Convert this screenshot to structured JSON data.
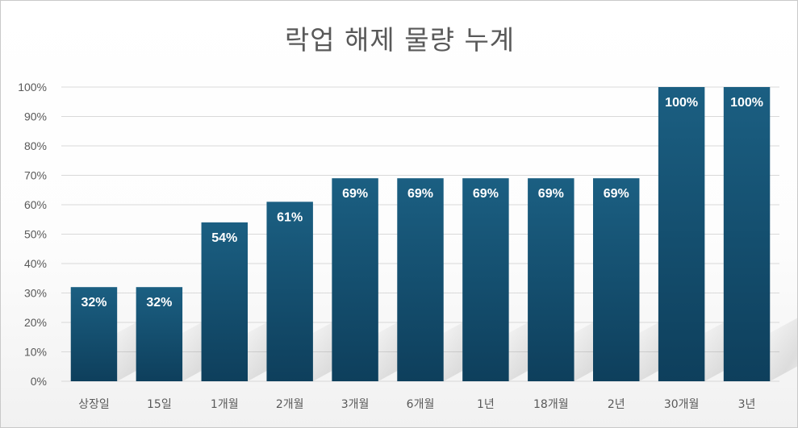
{
  "chart_data": {
    "type": "bar",
    "title": "락업 해제 물량 누계",
    "xlabel": "",
    "ylabel": "",
    "categories": [
      "상장일",
      "15일",
      "1개월",
      "2개월",
      "3개월",
      "6개월",
      "1년",
      "18개월",
      "2년",
      "30개월",
      "3년"
    ],
    "values": [
      32,
      32,
      54,
      61,
      69,
      69,
      69,
      69,
      69,
      100,
      100
    ],
    "data_labels": [
      "32%",
      "32%",
      "54%",
      "61%",
      "69%",
      "69%",
      "69%",
      "69%",
      "69%",
      "100%",
      "100%"
    ],
    "y_ticks": [
      "0%",
      "10%",
      "20%",
      "30%",
      "40%",
      "50%",
      "60%",
      "70%",
      "80%",
      "90%",
      "100%"
    ],
    "ylim": [
      0,
      100
    ],
    "grid": true,
    "legend": "none",
    "colors": {
      "bar_top": "#1b5f82",
      "bar_bottom": "#0e3f5c",
      "grid": "#d9d9d9",
      "text": "#595959"
    }
  }
}
